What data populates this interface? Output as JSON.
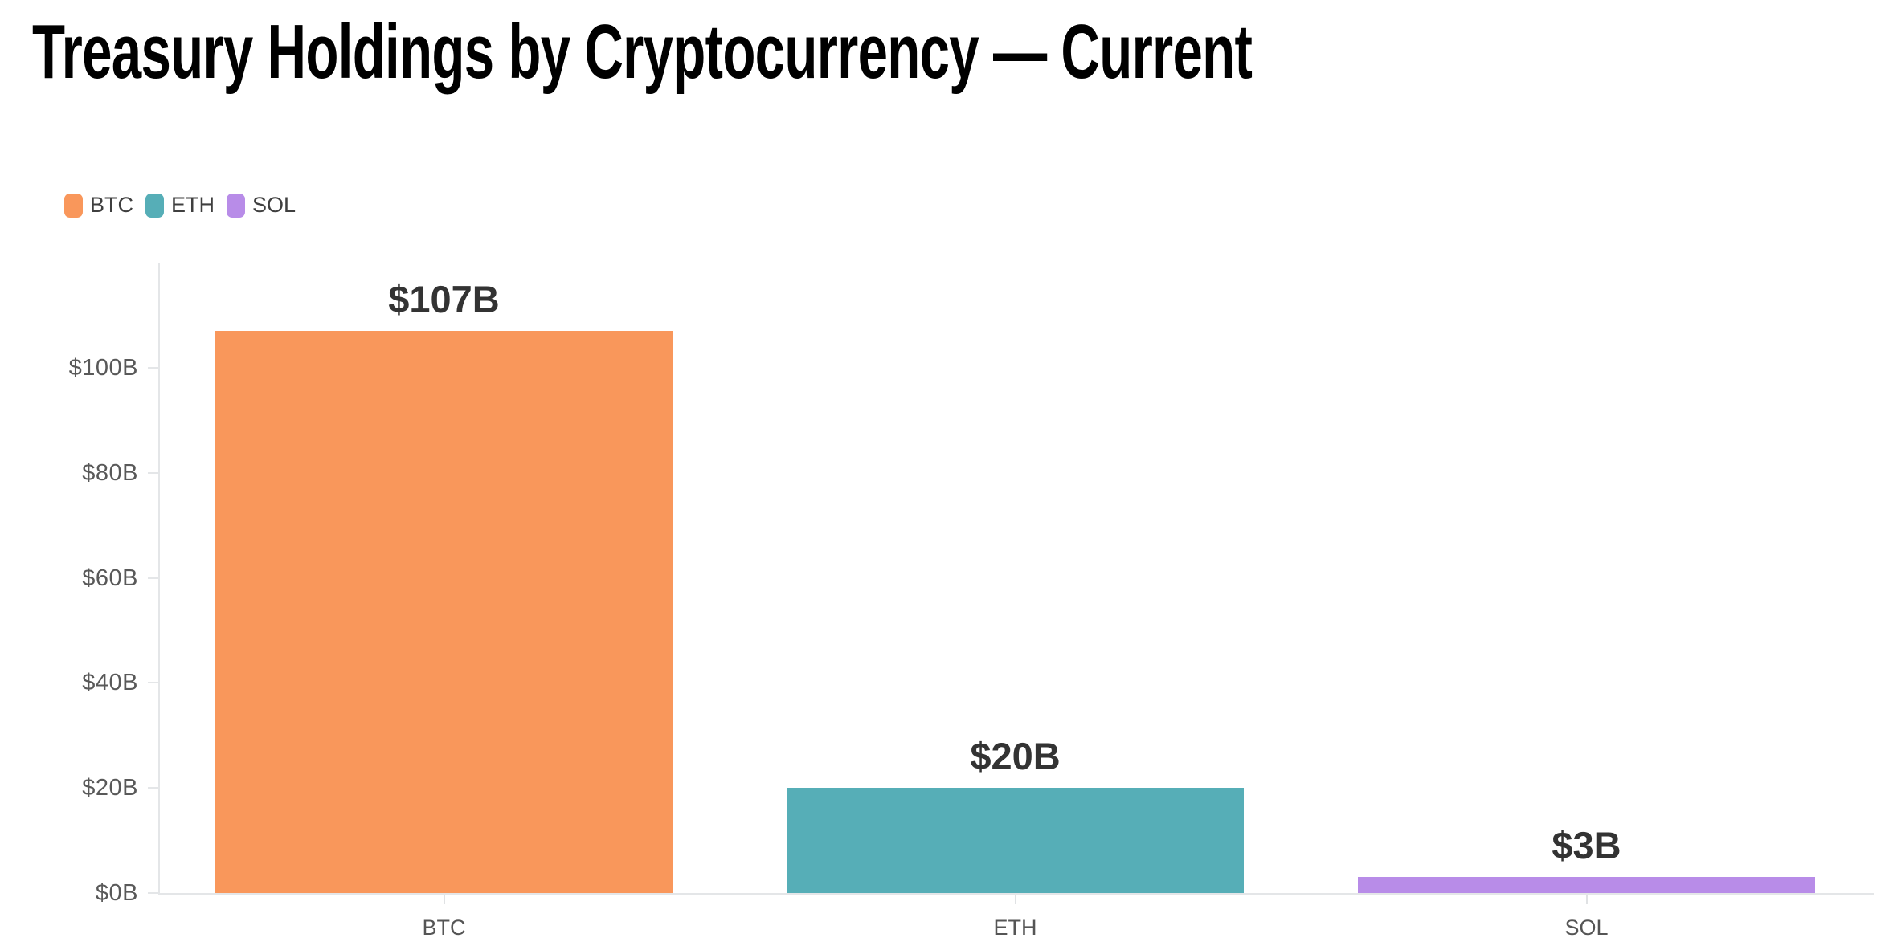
{
  "page": {
    "background": "#ffffff"
  },
  "chart_data": {
    "type": "bar",
    "title": "Treasury Holdings by Cryptocurrency — Current",
    "categories": [
      "BTC",
      "ETH",
      "SOL"
    ],
    "values": [
      107,
      20,
      3
    ],
    "value_labels": [
      "$107B",
      "$20B",
      "$3B"
    ],
    "bar_colors": [
      "#F9975B",
      "#56AEB7",
      "#B88CE8"
    ],
    "xlabel": "",
    "ylabel": "",
    "y_ticks": [
      "$0B",
      "$20B",
      "$40B",
      "$60B",
      "$80B",
      "$100B"
    ],
    "y_tick_values": [
      0,
      20,
      40,
      60,
      80,
      100
    ],
    "ylim": [
      0,
      120
    ],
    "grid": false,
    "legend_position": "top-left"
  },
  "legend": {
    "items": [
      {
        "label": "BTC",
        "color": "#F9975B"
      },
      {
        "label": "ETH",
        "color": "#56AEB7"
      },
      {
        "label": "SOL",
        "color": "#B88CE8"
      }
    ]
  },
  "palette": {
    "title_color": "#000000",
    "value_label_color": "#333333",
    "tick_label_color": "#595959",
    "category_label_color": "#555555",
    "legend_label_color": "#3f3f3f",
    "axis_line_color": "#e4e6e8",
    "background": "#ffffff"
  }
}
